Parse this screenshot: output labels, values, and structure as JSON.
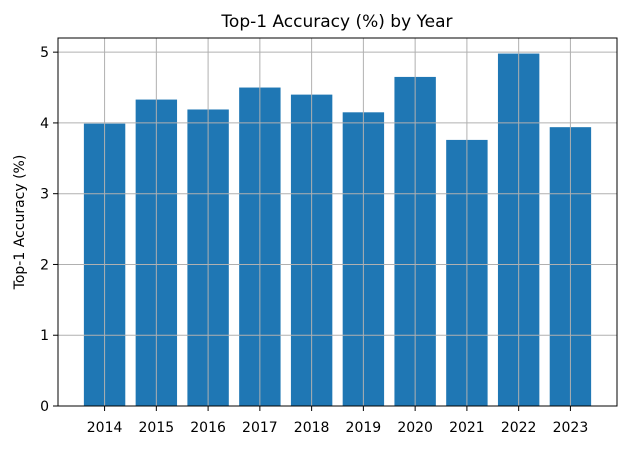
{
  "chart_data": {
    "type": "bar",
    "title": "Top-1 Accuracy (%) by Year",
    "xlabel": "",
    "ylabel": "Top-1 Accuracy (%)",
    "categories": [
      "2014",
      "2015",
      "2016",
      "2017",
      "2018",
      "2019",
      "2020",
      "2021",
      "2022",
      "2023"
    ],
    "values": [
      3.99,
      4.33,
      4.19,
      4.5,
      4.4,
      4.15,
      4.65,
      3.76,
      4.98,
      3.94
    ],
    "ylim": [
      0,
      5.2
    ],
    "yticks": [
      0,
      1,
      2,
      3,
      4,
      5
    ],
    "grid": true,
    "bar_color": "#1f77b4",
    "grid_color": "#b0b0b0"
  }
}
